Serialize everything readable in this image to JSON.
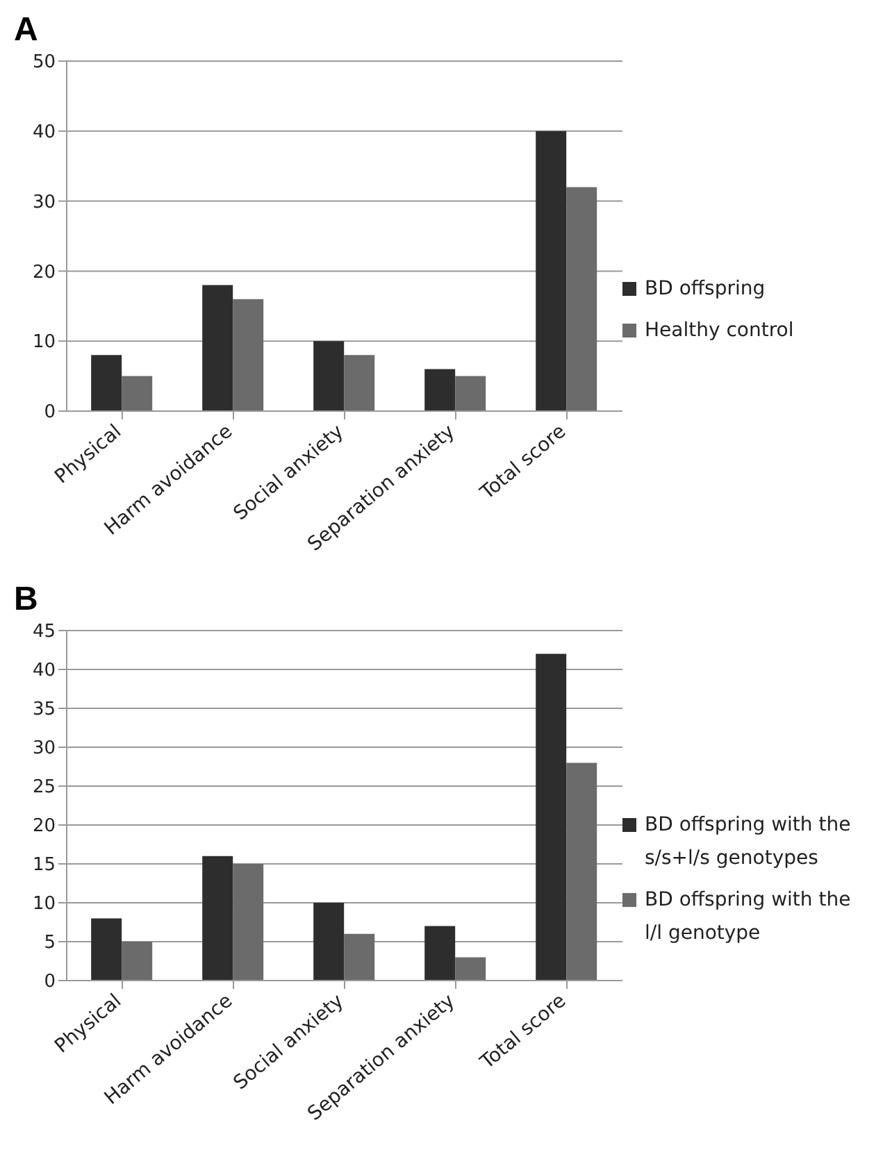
{
  "chart_data": [
    {
      "type": "bar",
      "title": "A",
      "categories": [
        "Physical",
        "Harm avoidance",
        "Social anxiety",
        "Separation anxiety",
        "Total score"
      ],
      "series": [
        {
          "name": "BD offspring",
          "color": "#2d2d2d",
          "values": [
            8,
            18,
            10,
            6,
            40
          ]
        },
        {
          "name": "Healthy control",
          "color": "#6b6b6b",
          "values": [
            5,
            16,
            8,
            5,
            32
          ]
        }
      ],
      "ylim": [
        0,
        50
      ],
      "yticks": [
        0,
        10,
        20,
        30,
        40,
        50
      ],
      "grid": "y",
      "legend": "right"
    },
    {
      "type": "bar",
      "title": "B",
      "categories": [
        "Physical",
        "Harm avoidance",
        "Social anxiety",
        "Separation anxiety",
        "Total score"
      ],
      "series": [
        {
          "name": "BD offspring with the s/s+l/s genotypes",
          "color": "#2d2d2d",
          "values": [
            8,
            16,
            10,
            7,
            42
          ]
        },
        {
          "name": "BD offspring with the l/l genotype",
          "color": "#6b6b6b",
          "values": [
            5,
            15,
            6,
            3,
            28
          ]
        }
      ],
      "ylim": [
        0,
        45
      ],
      "yticks": [
        0,
        5,
        10,
        15,
        20,
        25,
        30,
        35,
        40,
        45
      ],
      "grid": "y",
      "legend": "right"
    }
  ]
}
